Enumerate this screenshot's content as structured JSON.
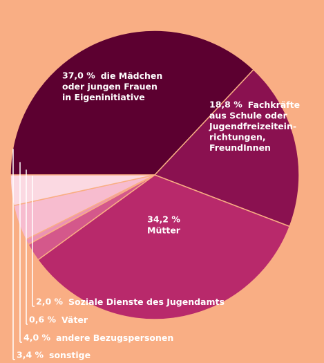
{
  "chart_data": {
    "type": "pie",
    "categories": [
      "die Mädchen\noder jungen Frauen\nin Eigeninitiative",
      "Fachkräfte\naus Schule oder\nJugendfreizeitein-\nrichtungen,\nFreundInnen",
      "Mütter",
      "Soziale Dienste des Jugendamts",
      "Väter",
      "andere Bezugspersonen",
      "sonstige"
    ],
    "values": [
      37.0,
      18.8,
      34.2,
      2.0,
      0.6,
      4.0,
      3.4
    ],
    "value_labels": [
      "37,0 %",
      "18,8 %",
      "34,2 %",
      "2,0 %",
      "0,6 %",
      "4,0 %",
      "3,4 %"
    ],
    "colors": [
      "#5c0030",
      "#8a1150",
      "#b8296b",
      "#d4588b",
      "#ec93b3",
      "#f7bccf",
      "#fbd9e2"
    ]
  }
}
